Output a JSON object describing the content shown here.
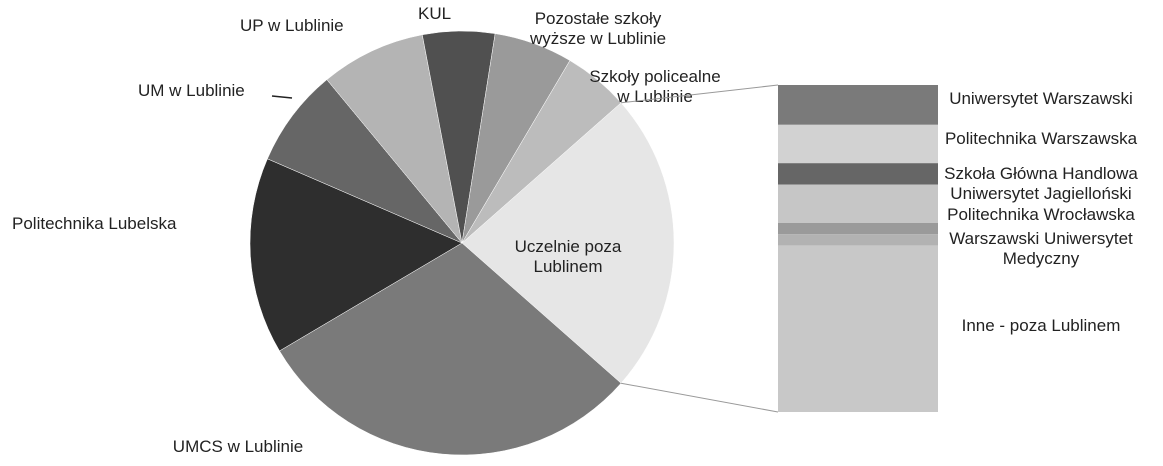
{
  "chart_data": {
    "type": "pie",
    "categories": [
      "Uczelnie poza\nLublinem",
      "UMCS w Lublinie",
      "Politechnika Lubelska",
      "UM w Lublinie",
      "UP w Lublinie",
      "KUL",
      "Pozostałe szkoły\nwyższe w Lublinie",
      "Szkoły policealne\nw Lublinie"
    ],
    "values": [
      23,
      30,
      15,
      7.5,
      8,
      5.5,
      6,
      5
    ],
    "colors": [
      "#e6e6e6",
      "#7a7a7a",
      "#2e2e2e",
      "#666666",
      "#b4b4b4",
      "#505050",
      "#9a9a9a",
      "#bcbcbc"
    ],
    "breakdown": {
      "type": "bar",
      "categories": [
        "Uniwersytet Warszawski",
        "Politechnika Warszawska",
        "Szkoła Główna Handlowa",
        "Uniwersytet Jagielloński",
        "Politechnika Wrocławska",
        "Warszawski Uniwersytet\nMedyczny",
        "Inne - poza Lublinem"
      ],
      "values": [
        2.8,
        2.7,
        1.5,
        2.7,
        0.8,
        0.8,
        11.7
      ],
      "colors": [
        "#7a7a7a",
        "#d2d2d2",
        "#666666",
        "#c6c6c6",
        "#9a9a9a",
        "#b2b2b2",
        "#c8c8c8"
      ]
    }
  }
}
